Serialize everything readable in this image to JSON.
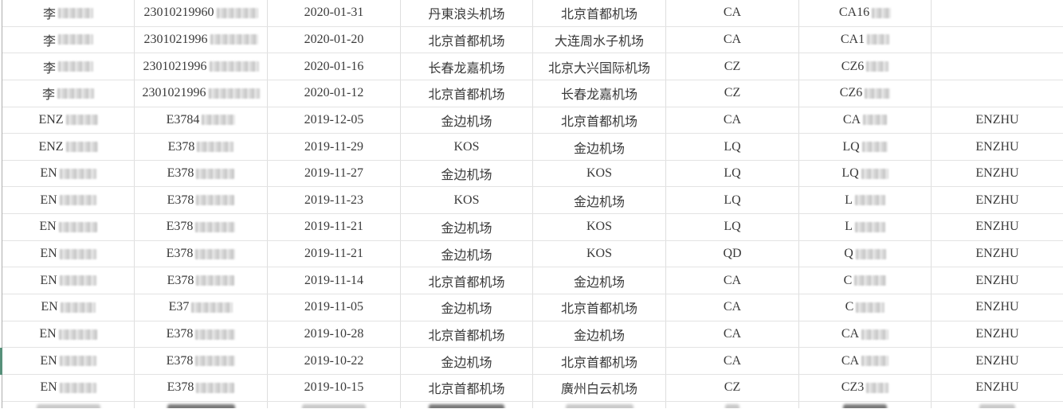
{
  "colors": {
    "row_marker_green": "#57907a",
    "grid_line": "#e3e3e3",
    "outer_border": "#aeaeae",
    "text": "#3a3a3a"
  },
  "table": {
    "rows": [
      {
        "name": "李",
        "name_blur": 44,
        "id": "23010219960",
        "id_blur": 52,
        "date": "2020-01-31",
        "dep": "丹東浪头机场",
        "arr": "北京首都机场",
        "airline": "CA",
        "flight": "CA16",
        "flight_blur": 24,
        "holder": "",
        "marker": false
      },
      {
        "name": "李",
        "name_blur": 44,
        "id": "2301021996",
        "id_blur": 60,
        "date": "2020-01-20",
        "dep": "北京首都机场",
        "arr": "大连周水子机场",
        "airline": "CA",
        "flight": "CA1",
        "flight_blur": 28,
        "holder": "",
        "marker": false
      },
      {
        "name": "李",
        "name_blur": 44,
        "id": "2301021996",
        "id_blur": 62,
        "date": "2020-01-16",
        "dep": "长春龙嘉机场",
        "arr": "北京大兴国际机场",
        "airline": "CZ",
        "flight": "CZ6",
        "flight_blur": 28,
        "holder": "",
        "marker": false
      },
      {
        "name": "李",
        "name_blur": 46,
        "id": "2301021996",
        "id_blur": 64,
        "date": "2020-01-12",
        "dep": "北京首都机场",
        "arr": "长春龙嘉机场",
        "airline": "CZ",
        "flight": "CZ6",
        "flight_blur": 32,
        "holder": "",
        "marker": false
      },
      {
        "name": "ENZ",
        "name_blur": 40,
        "id": "E3784",
        "id_blur": 42,
        "date": "2019-12-05",
        "dep": "金边机场",
        "arr": "北京首都机场",
        "airline": "CA",
        "flight": "CA",
        "flight_blur": 30,
        "holder": "ENZHU",
        "marker": false
      },
      {
        "name": "ENZ",
        "name_blur": 40,
        "id": "E378",
        "id_blur": 46,
        "date": "2019-11-29",
        "dep": "KOS",
        "arr": "金边机场",
        "airline": "LQ",
        "flight": "LQ",
        "flight_blur": 32,
        "holder": "ENZHU",
        "marker": false
      },
      {
        "name": "EN",
        "name_blur": 46,
        "id": "E378",
        "id_blur": 48,
        "date": "2019-11-27",
        "dep": "金边机场",
        "arr": "KOS",
        "airline": "LQ",
        "flight": "LQ",
        "flight_blur": 34,
        "holder": "ENZHU",
        "marker": false
      },
      {
        "name": "EN",
        "name_blur": 46,
        "id": "E378",
        "id_blur": 48,
        "date": "2019-11-23",
        "dep": "KOS",
        "arr": "金边机场",
        "airline": "LQ",
        "flight": "L",
        "flight_blur": 38,
        "holder": "ENZHU",
        "marker": false
      },
      {
        "name": "EN",
        "name_blur": 48,
        "id": "E378",
        "id_blur": 50,
        "date": "2019-11-21",
        "dep": "金边机场",
        "arr": "KOS",
        "airline": "LQ",
        "flight": "L",
        "flight_blur": 38,
        "holder": "ENZHU",
        "marker": false
      },
      {
        "name": "EN",
        "name_blur": 46,
        "id": "E378",
        "id_blur": 50,
        "date": "2019-11-21",
        "dep": "金边机场",
        "arr": "KOS",
        "airline": "QD",
        "flight": "Q",
        "flight_blur": 38,
        "holder": "ENZHU",
        "marker": false
      },
      {
        "name": "EN",
        "name_blur": 46,
        "id": "E378",
        "id_blur": 48,
        "date": "2019-11-14",
        "dep": "北京首都机场",
        "arr": "金边机场",
        "airline": "CA",
        "flight": "C",
        "flight_blur": 40,
        "holder": "ENZHU",
        "marker": false
      },
      {
        "name": "EN",
        "name_blur": 44,
        "id": "E37",
        "id_blur": 52,
        "date": "2019-11-05",
        "dep": "金边机场",
        "arr": "北京首都机场",
        "airline": "CA",
        "flight": "C",
        "flight_blur": 36,
        "holder": "ENZHU",
        "marker": false
      },
      {
        "name": "EN",
        "name_blur": 48,
        "id": "E378",
        "id_blur": 50,
        "date": "2019-10-28",
        "dep": "北京首都机场",
        "arr": "金边机场",
        "airline": "CA",
        "flight": "CA",
        "flight_blur": 34,
        "holder": "ENZHU",
        "marker": false
      },
      {
        "name": "EN",
        "name_blur": 46,
        "id": "E378",
        "id_blur": 50,
        "date": "2019-10-22",
        "dep": "金边机场",
        "arr": "北京首都机场",
        "airline": "CA",
        "flight": "CA",
        "flight_blur": 34,
        "holder": "ENZHU",
        "marker": true
      },
      {
        "name": "EN",
        "name_blur": 46,
        "id": "E378",
        "id_blur": 48,
        "date": "2019-10-15",
        "dep": "北京首都机场",
        "arr": "廣州白云机场",
        "airline": "CZ",
        "flight": "CZ3",
        "flight_blur": 28,
        "holder": "ENZHU",
        "marker": false
      }
    ],
    "partial_row": {
      "cells": [
        {
          "tone": "light",
          "width": 80
        },
        {
          "tone": "dark",
          "width": 85
        },
        {
          "tone": "light",
          "width": 80
        },
        {
          "tone": "dark",
          "width": 95
        },
        {
          "tone": "light",
          "width": 85
        },
        {
          "tone": "light",
          "width": 18
        },
        {
          "tone": "dark",
          "width": 55
        },
        {
          "tone": "light",
          "width": 45
        }
      ]
    }
  }
}
